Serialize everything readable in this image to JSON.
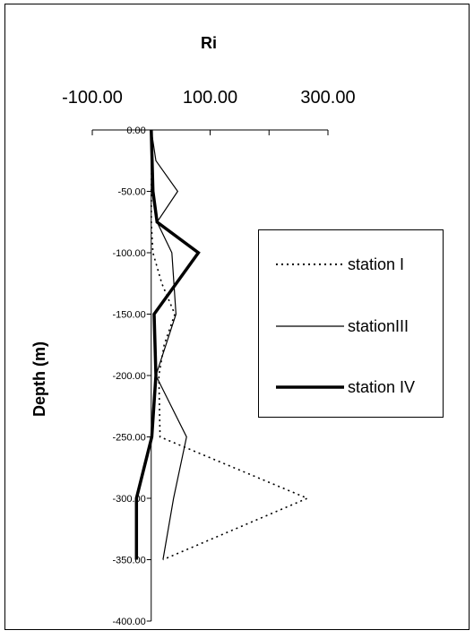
{
  "chart_data": {
    "type": "line",
    "orientation": "x-value-vs-depth",
    "title": "Ri",
    "xlabel": "Ri",
    "ylabel": "Depth (m)",
    "xlim": [
      -100,
      300
    ],
    "ylim": [
      -400,
      0
    ],
    "x_top_tick_labels": [
      "-100.00",
      "100.00",
      "300.00"
    ],
    "y_tick_labels": [
      "0.00",
      "-50.00",
      "-100.00",
      "-150.00",
      "-200.00",
      "-250.00",
      "-300.00",
      "-350.00",
      "-400.00"
    ],
    "y_ticks": [
      0,
      -50,
      -100,
      -150,
      -200,
      -250,
      -300,
      -350,
      -400
    ],
    "grid": false,
    "legend_position": "right",
    "series": [
      {
        "name": "station I",
        "style": "dotted",
        "points": [
          {
            "depth": 0,
            "ri": 0
          },
          {
            "depth": -25,
            "ri": 1
          },
          {
            "depth": -50,
            "ri": 0
          },
          {
            "depth": -75,
            "ri": 0
          },
          {
            "depth": -100,
            "ri": 3
          },
          {
            "depth": -125,
            "ri": 18
          },
          {
            "depth": -150,
            "ri": 40
          },
          {
            "depth": -175,
            "ri": 22
          },
          {
            "depth": -200,
            "ri": 13
          },
          {
            "depth": -250,
            "ri": 15
          },
          {
            "depth": -300,
            "ri": 265
          },
          {
            "depth": -350,
            "ri": 20
          }
        ]
      },
      {
        "name": "stationIII",
        "style": "thin",
        "points": [
          {
            "depth": 0,
            "ri": 0
          },
          {
            "depth": -25,
            "ri": 8
          },
          {
            "depth": -50,
            "ri": 45
          },
          {
            "depth": -75,
            "ri": 10
          },
          {
            "depth": -100,
            "ri": 35
          },
          {
            "depth": -150,
            "ri": 42
          },
          {
            "depth": -200,
            "ri": 8
          },
          {
            "depth": -250,
            "ri": 60
          },
          {
            "depth": -300,
            "ri": 38
          },
          {
            "depth": -350,
            "ri": 20
          }
        ]
      },
      {
        "name": "station IV",
        "style": "thick",
        "points": [
          {
            "depth": 0,
            "ri": 0
          },
          {
            "depth": -50,
            "ri": 3
          },
          {
            "depth": -75,
            "ri": 10
          },
          {
            "depth": -100,
            "ri": 80
          },
          {
            "depth": -150,
            "ri": 5
          },
          {
            "depth": -200,
            "ri": 8
          },
          {
            "depth": -250,
            "ri": 1
          },
          {
            "depth": -300,
            "ri": -25
          },
          {
            "depth": -350,
            "ri": -25
          }
        ]
      }
    ]
  }
}
